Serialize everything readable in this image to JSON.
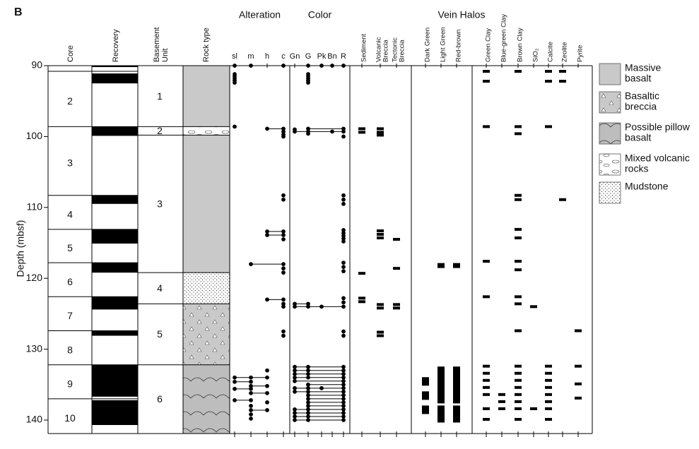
{
  "panel_label": "B",
  "depth_axis": {
    "label": "Depth (mbsf)",
    "ylim": [
      90,
      141.9
    ],
    "yticks": [
      90,
      100,
      110,
      120,
      130,
      140
    ]
  },
  "core": {
    "header": "Core",
    "intervals": [
      {
        "label": "2",
        "top": 90.8,
        "bottom": 98.6
      },
      {
        "label": "3",
        "top": 98.6,
        "bottom": 108.3
      },
      {
        "label": "4",
        "top": 108.3,
        "bottom": 113.1
      },
      {
        "label": "5",
        "top": 113.1,
        "bottom": 117.8
      },
      {
        "label": "6",
        "top": 117.8,
        "bottom": 122.6
      },
      {
        "label": "7",
        "top": 122.6,
        "bottom": 127.4
      },
      {
        "label": "8",
        "top": 127.4,
        "bottom": 132.2
      },
      {
        "label": "9",
        "top": 132.2,
        "bottom": 137
      },
      {
        "label": "10",
        "top": 137,
        "bottom": 141.9
      }
    ]
  },
  "recovery": {
    "header": "Recovery",
    "intervals": [
      [
        90,
        90.2
      ],
      [
        91.1,
        92.5
      ],
      [
        98.6,
        99.9
      ],
      [
        108.3,
        109.5
      ],
      [
        113.1,
        115.1
      ],
      [
        117.8,
        119.2
      ],
      [
        122.6,
        124.4
      ],
      [
        127.4,
        128.1
      ],
      [
        132.2,
        136.7
      ],
      [
        137.2,
        140.7
      ]
    ]
  },
  "basement_unit": {
    "header": [
      "Basement",
      "Unit"
    ],
    "intervals": [
      {
        "label": "1",
        "top": 90,
        "bottom": 98.6
      },
      {
        "label": "2",
        "top": 98.6,
        "bottom": 99.8
      },
      {
        "label": "3",
        "top": 99.8,
        "bottom": 119.2
      },
      {
        "label": "4",
        "top": 119.2,
        "bottom": 123.6
      },
      {
        "label": "5",
        "top": 123.6,
        "bottom": 132.2
      },
      {
        "label": "6",
        "top": 132.2,
        "bottom": 141.9
      }
    ]
  },
  "rock_type": {
    "header": "Rock type",
    "intervals": [
      {
        "pattern": "massive",
        "top": 90,
        "bottom": 98.6
      },
      {
        "pattern": "mixed",
        "top": 98.6,
        "bottom": 99.8
      },
      {
        "pattern": "massive",
        "top": 99.8,
        "bottom": 119.2
      },
      {
        "pattern": "mudstone",
        "top": 119.2,
        "bottom": 123.6
      },
      {
        "pattern": "breccia",
        "top": 123.6,
        "bottom": 132.2
      },
      {
        "pattern": "pillow",
        "top": 132.2,
        "bottom": 141.9
      }
    ]
  },
  "alteration": {
    "header": "Alteration",
    "style": "dot",
    "connect": true,
    "columns": [
      {
        "name": [
          "sl"
        ],
        "depths": [
          90,
          91.2,
          91.5,
          91.8,
          92.1,
          92.4,
          98.6,
          134,
          134.6,
          135.6,
          137.2
        ]
      },
      {
        "name": [
          "m"
        ],
        "depths": [
          90,
          118,
          134,
          134.6,
          135.2,
          135.6,
          136.2,
          137.2,
          138,
          138.6,
          139.2,
          139.8
        ]
      },
      {
        "name": [
          "h"
        ],
        "depths": [
          98.9,
          113.4,
          113.9,
          123,
          133,
          134,
          135.2,
          136.2,
          137.5,
          138.6
        ]
      },
      {
        "name": [
          "c"
        ],
        "depths": [
          90,
          98.9,
          99.3,
          99.7,
          100,
          108.3,
          108.9,
          113.4,
          113.9,
          114.5,
          118,
          118.6,
          119.2,
          123,
          123.6,
          124,
          127.5,
          128.1
        ]
      }
    ]
  },
  "color": {
    "header": "Color",
    "style": "dot",
    "connect": true,
    "columns": [
      {
        "name": [
          "Gn"
        ],
        "depths": [
          99,
          99.3,
          123.6,
          124,
          132.5,
          133,
          133.5,
          134,
          134.5,
          135.5,
          136,
          138.5,
          139,
          139.5,
          140
        ]
      },
      {
        "name": [
          "G"
        ],
        "depths": [
          90,
          91.2,
          91.5,
          91.8,
          92.1,
          92.4,
          98.9,
          99.3,
          99.6,
          123.6,
          124,
          132.5,
          133,
          133.5,
          134,
          135,
          135.5,
          136,
          136.5,
          137,
          137.5,
          138,
          138.5,
          139,
          139.5,
          140
        ]
      },
      {
        "name": [
          "Pk"
        ],
        "depths": [
          90,
          124,
          135.5
        ]
      },
      {
        "name": [
          "Bn"
        ],
        "depths": [
          90,
          99.3
        ]
      },
      {
        "name": [
          "R"
        ],
        "depths": [
          90,
          98.9,
          99.3,
          100,
          108.3,
          108.9,
          109.5,
          113.2,
          113.6,
          114,
          114.4,
          114.8,
          117.8,
          118.4,
          119,
          122.8,
          123.4,
          124,
          127.5,
          128.1,
          132.5,
          133,
          133.5,
          134,
          134.5,
          135,
          135.5,
          136,
          136.5,
          137,
          137.5,
          138,
          138.5,
          139,
          139.5,
          140
        ]
      }
    ]
  },
  "breccia": {
    "style": "dash",
    "columns": [
      {
        "name": [
          "Sediment"
        ],
        "depths": [
          98.9,
          99.4,
          119.3,
          122.8,
          123.3
        ]
      },
      {
        "name": [
          "Volcanic",
          "Breccia"
        ],
        "depths": [
          98.9,
          99.4,
          99.8,
          113.3,
          113.8,
          114.3,
          123.7,
          124.2,
          127.6,
          128.1
        ]
      },
      {
        "name": [
          "Tectonic",
          "Breccia"
        ],
        "depths": [
          114.5,
          118.6,
          123.7,
          124.2
        ]
      }
    ]
  },
  "vein_halos": {
    "header": "Vein Halos",
    "style": "block",
    "columns": [
      {
        "name": [
          "Dark Green"
        ],
        "depths": [
          134.3,
          134.8,
          136.3,
          136.8,
          138.3,
          138.8
        ]
      },
      {
        "name": [
          "Light Green"
        ],
        "depths": [
          118.2,
          132.8,
          133.3,
          133.8,
          134.3,
          134.8,
          135.3,
          135.8,
          136.3,
          136.8,
          137.3,
          138.3,
          138.8,
          139.3,
          140
        ]
      },
      {
        "name": [
          "Red-brown"
        ],
        "depths": [
          118.2,
          132.8,
          133.3,
          133.8,
          134.3,
          134.8,
          135.3,
          135.8,
          136.3,
          136.8,
          137.3,
          138.3,
          138.8,
          139.3,
          140
        ]
      }
    ]
  },
  "minerals": {
    "style": "dash",
    "columns": [
      {
        "name": [
          "Green Clay"
        ],
        "depths": [
          90.8,
          92.2,
          98.6,
          117.6,
          122.6,
          132.4,
          133.4,
          134.4,
          135.4,
          136.4,
          138.4,
          139.9
        ]
      },
      {
        "name": [
          "Blue-green Clay"
        ],
        "depths": [
          136.4,
          137.4,
          138.4
        ]
      },
      {
        "name": [
          "Brown Clay"
        ],
        "depths": [
          90.8,
          98.6,
          99.6,
          108.3,
          108.9,
          113.1,
          114.3,
          117.6,
          118.8,
          122.6,
          123.6,
          127.4,
          132.4,
          133.4,
          134.4,
          135.4,
          136.4,
          137.4,
          138.4,
          139.9
        ]
      },
      {
        "name": [
          "SiO₂"
        ],
        "depths": [
          124,
          138.4
        ]
      },
      {
        "name": [
          "Calcite"
        ],
        "depths": [
          90.8,
          92.2,
          98.6,
          132.4,
          133.4,
          134.4,
          135.4,
          136.4,
          137.4,
          138.4,
          139.9
        ]
      },
      {
        "name": [
          "Zeolite"
        ],
        "depths": [
          90.8,
          92.2,
          108.9
        ]
      },
      {
        "name": [
          "Pyrite"
        ],
        "depths": [
          127.4,
          132.4,
          134.9,
          136.9
        ]
      }
    ]
  },
  "legend": [
    {
      "label": [
        "Massive",
        "basalt"
      ],
      "pattern": "massive"
    },
    {
      "label": [
        "Basaltic",
        "breccia"
      ],
      "pattern": "breccia"
    },
    {
      "label": [
        "Possible pillow",
        "basalt"
      ],
      "pattern": "pillow"
    },
    {
      "label": [
        "Mixed volcanic",
        "rocks"
      ],
      "pattern": "mixed"
    },
    {
      "label": [
        "Mudstone"
      ],
      "pattern": "mudstone"
    }
  ]
}
